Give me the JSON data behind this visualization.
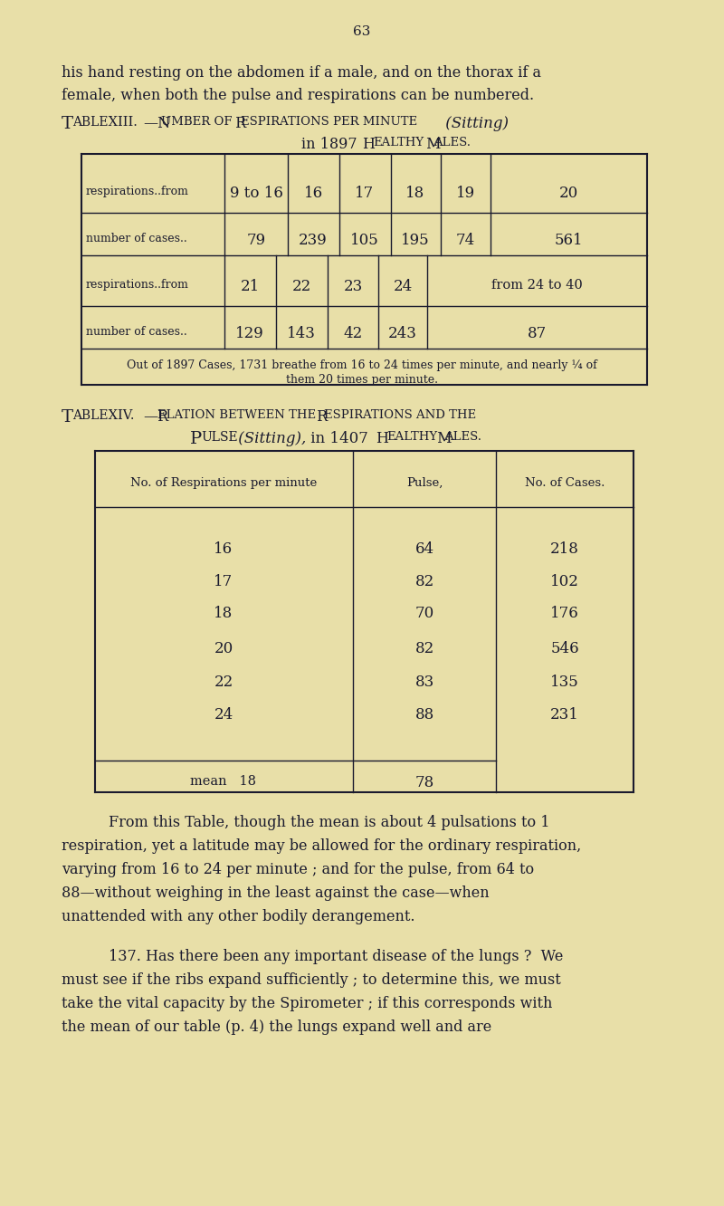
{
  "bg_color": "#e8dfa8",
  "text_color": "#1a1a2e",
  "page_number": "63",
  "intro_text_1": "his hand resting on the abdomen if a male, and on the thorax if a",
  "intro_text_2": "female, when both the pulse and respirations can be numbered.",
  "table13_footnote_1": "Out of 1897 Cases, 1731 breathe from 16 to 24 times per minute, and nearly ¼ of",
  "table13_footnote_2": "them 20 times per minute.",
  "table14_rows": [
    [
      "16",
      "64",
      "218"
    ],
    [
      "17",
      "82",
      "102"
    ],
    [
      "18",
      "70",
      "176"
    ],
    [
      "20",
      "82",
      "546"
    ],
    [
      "22",
      "83",
      "135"
    ],
    [
      "24",
      "88",
      "231"
    ]
  ],
  "para1": [
    "From this Table, though the mean is about 4 pulsations to 1",
    "respiration, yet a latitude may be allowed for the ordinary respiration,",
    "varying from 16 to 24 per minute ; and for the pulse, from 64 to",
    "88—without weighing in the least against the case—when",
    "unattended with any other bodily derangement."
  ],
  "para2": [
    "137. Has there been any important disease of the lungs ?  We",
    "must see if the ribs expand sufficiently ; to determine this, we must",
    "take the vital capacity by the Spirometer ; if this corresponds with",
    "the mean of our table (p. 4) the lungs expand well and are"
  ]
}
